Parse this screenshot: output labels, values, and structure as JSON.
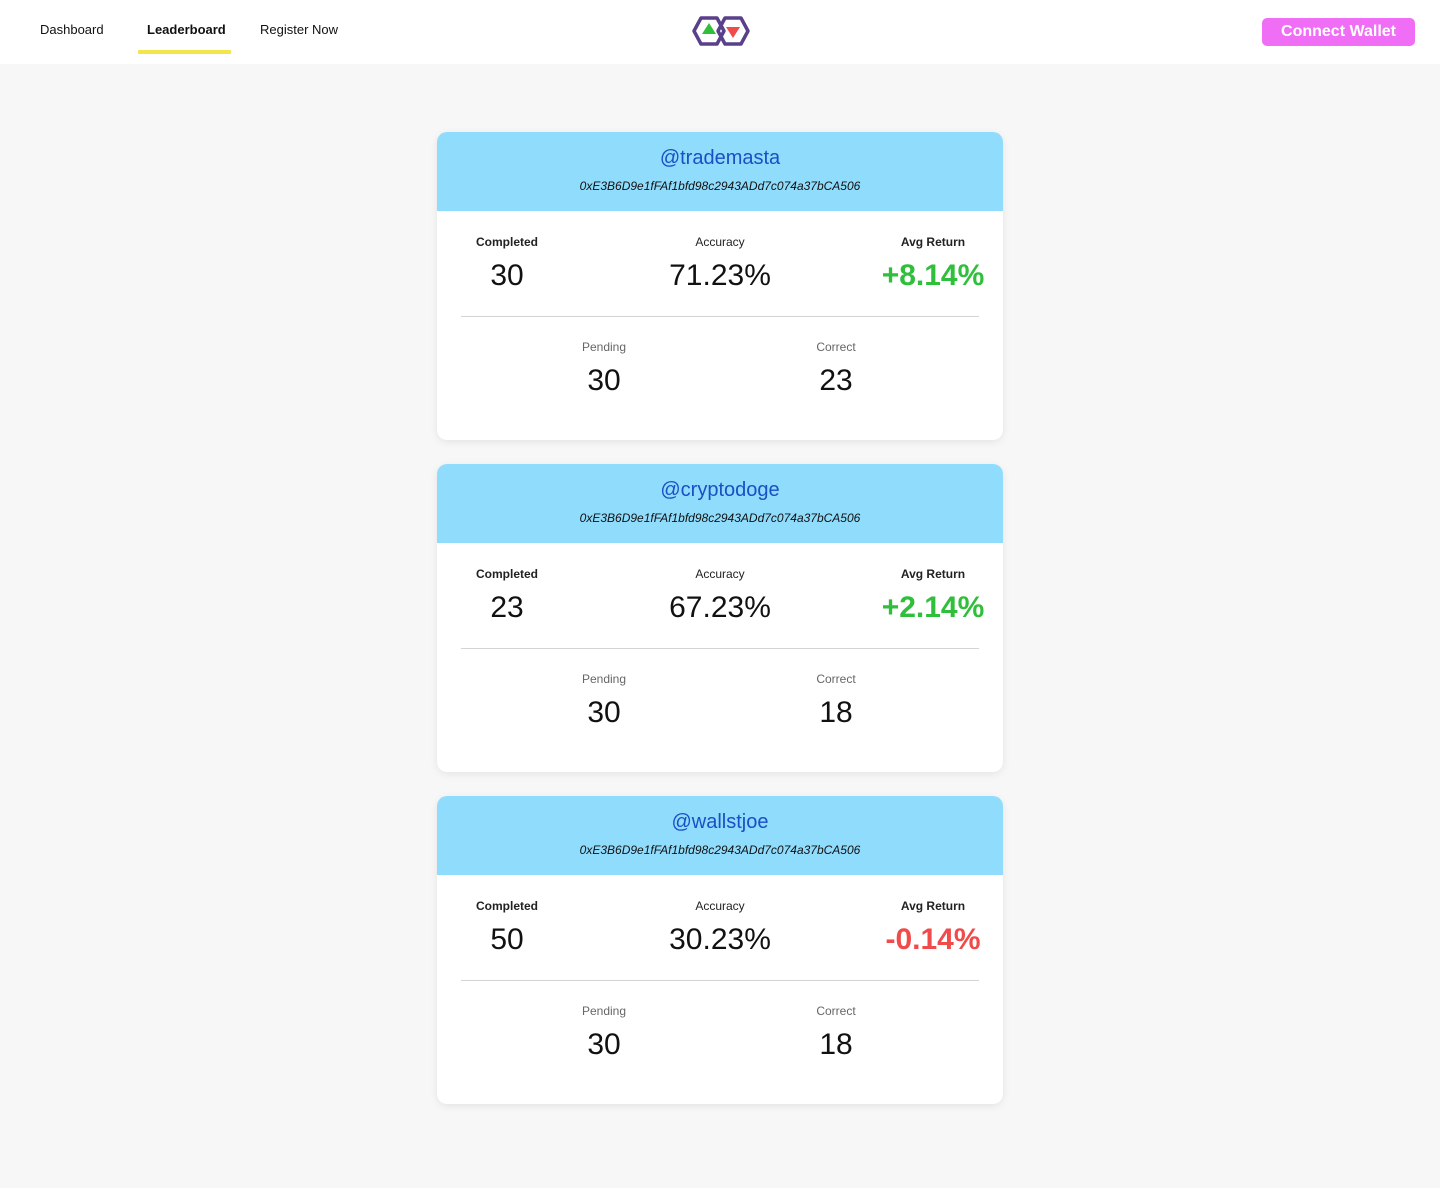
{
  "nav": {
    "items": [
      "Dashboard",
      "Leaderboard",
      "Register Now"
    ],
    "active": "Leaderboard"
  },
  "header": {
    "connect_label": "Connect Wallet",
    "connect_color": "#f06ef5"
  },
  "colors": {
    "header_bg": "#8fdcfd",
    "positive": "#2fbf3a",
    "negative": "#f04a4a",
    "handle": "#1b4fc4",
    "nav_underline": "#f2e64a",
    "logo_outline": "#5a3f8a",
    "logo_up": "#2fbf3a",
    "logo_down": "#f04a4a"
  },
  "labels": {
    "completed": "Completed",
    "accuracy": "Accuracy",
    "avg_return": "Avg Return",
    "pending": "Pending",
    "correct": "Correct"
  },
  "cards": [
    {
      "handle": "@trademasta",
      "address": "0xE3B6D9e1fFAf1bfd98c2943ADd7c074a37bCA506",
      "completed": "30",
      "accuracy": "71.23%",
      "avg_return": "+8.14%",
      "trend": "positive",
      "pending": "30",
      "correct": "23"
    },
    {
      "handle": "@cryptodoge",
      "address": "0xE3B6D9e1fFAf1bfd98c2943ADd7c074a37bCA506",
      "completed": "23",
      "accuracy": "67.23%",
      "avg_return": "+2.14%",
      "trend": "positive",
      "pending": "30",
      "correct": "18"
    },
    {
      "handle": "@wallstjoe",
      "address": "0xE3B6D9e1fFAf1bfd98c2943ADd7c074a37bCA506",
      "completed": "50",
      "accuracy": "30.23%",
      "avg_return": "-0.14%",
      "trend": "negative",
      "pending": "30",
      "correct": "18"
    }
  ]
}
